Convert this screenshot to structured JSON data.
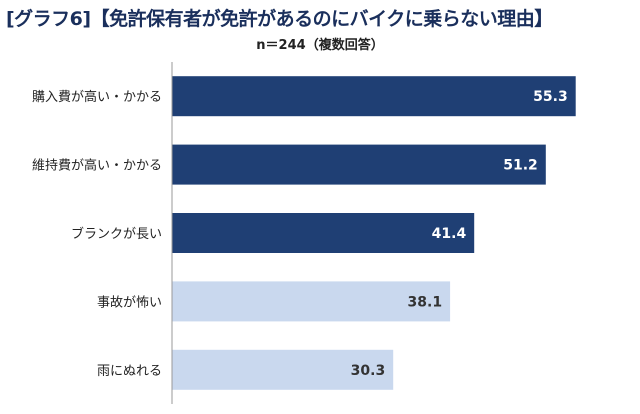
{
  "title": "[グラフ6]【免許保有者が免許があるのにバイクに乗らない理由】",
  "subtitle": "n＝244（複数回答）",
  "chart_data": {
    "type": "bar",
    "orientation": "horizontal",
    "title": "[グラフ6]【免許保有者が免許があるのにバイクに乗らない理由】",
    "subtitle": "n＝244（複数回答）",
    "categories": [
      "購入費が高い・かかる",
      "維持費が高い・かかる",
      "ブランクが長い",
      "事故が怖い",
      "雨にぬれる"
    ],
    "values": [
      55.3,
      51.2,
      41.4,
      38.1,
      30.3
    ],
    "value_labels": [
      "55.3",
      "51.2",
      "41.4",
      "38.1",
      "30.3"
    ],
    "highlighted": [
      true,
      true,
      true,
      false,
      false
    ],
    "colors": {
      "highlight": "#1f3f74",
      "normal": "#c9d8ee",
      "label_on_dark": "#ffffff",
      "label_on_light": "#333333",
      "axis": "#999999"
    },
    "xlim": [
      0,
      60
    ],
    "xlabel": "",
    "ylabel": "",
    "grid": false,
    "legend": "none"
  }
}
